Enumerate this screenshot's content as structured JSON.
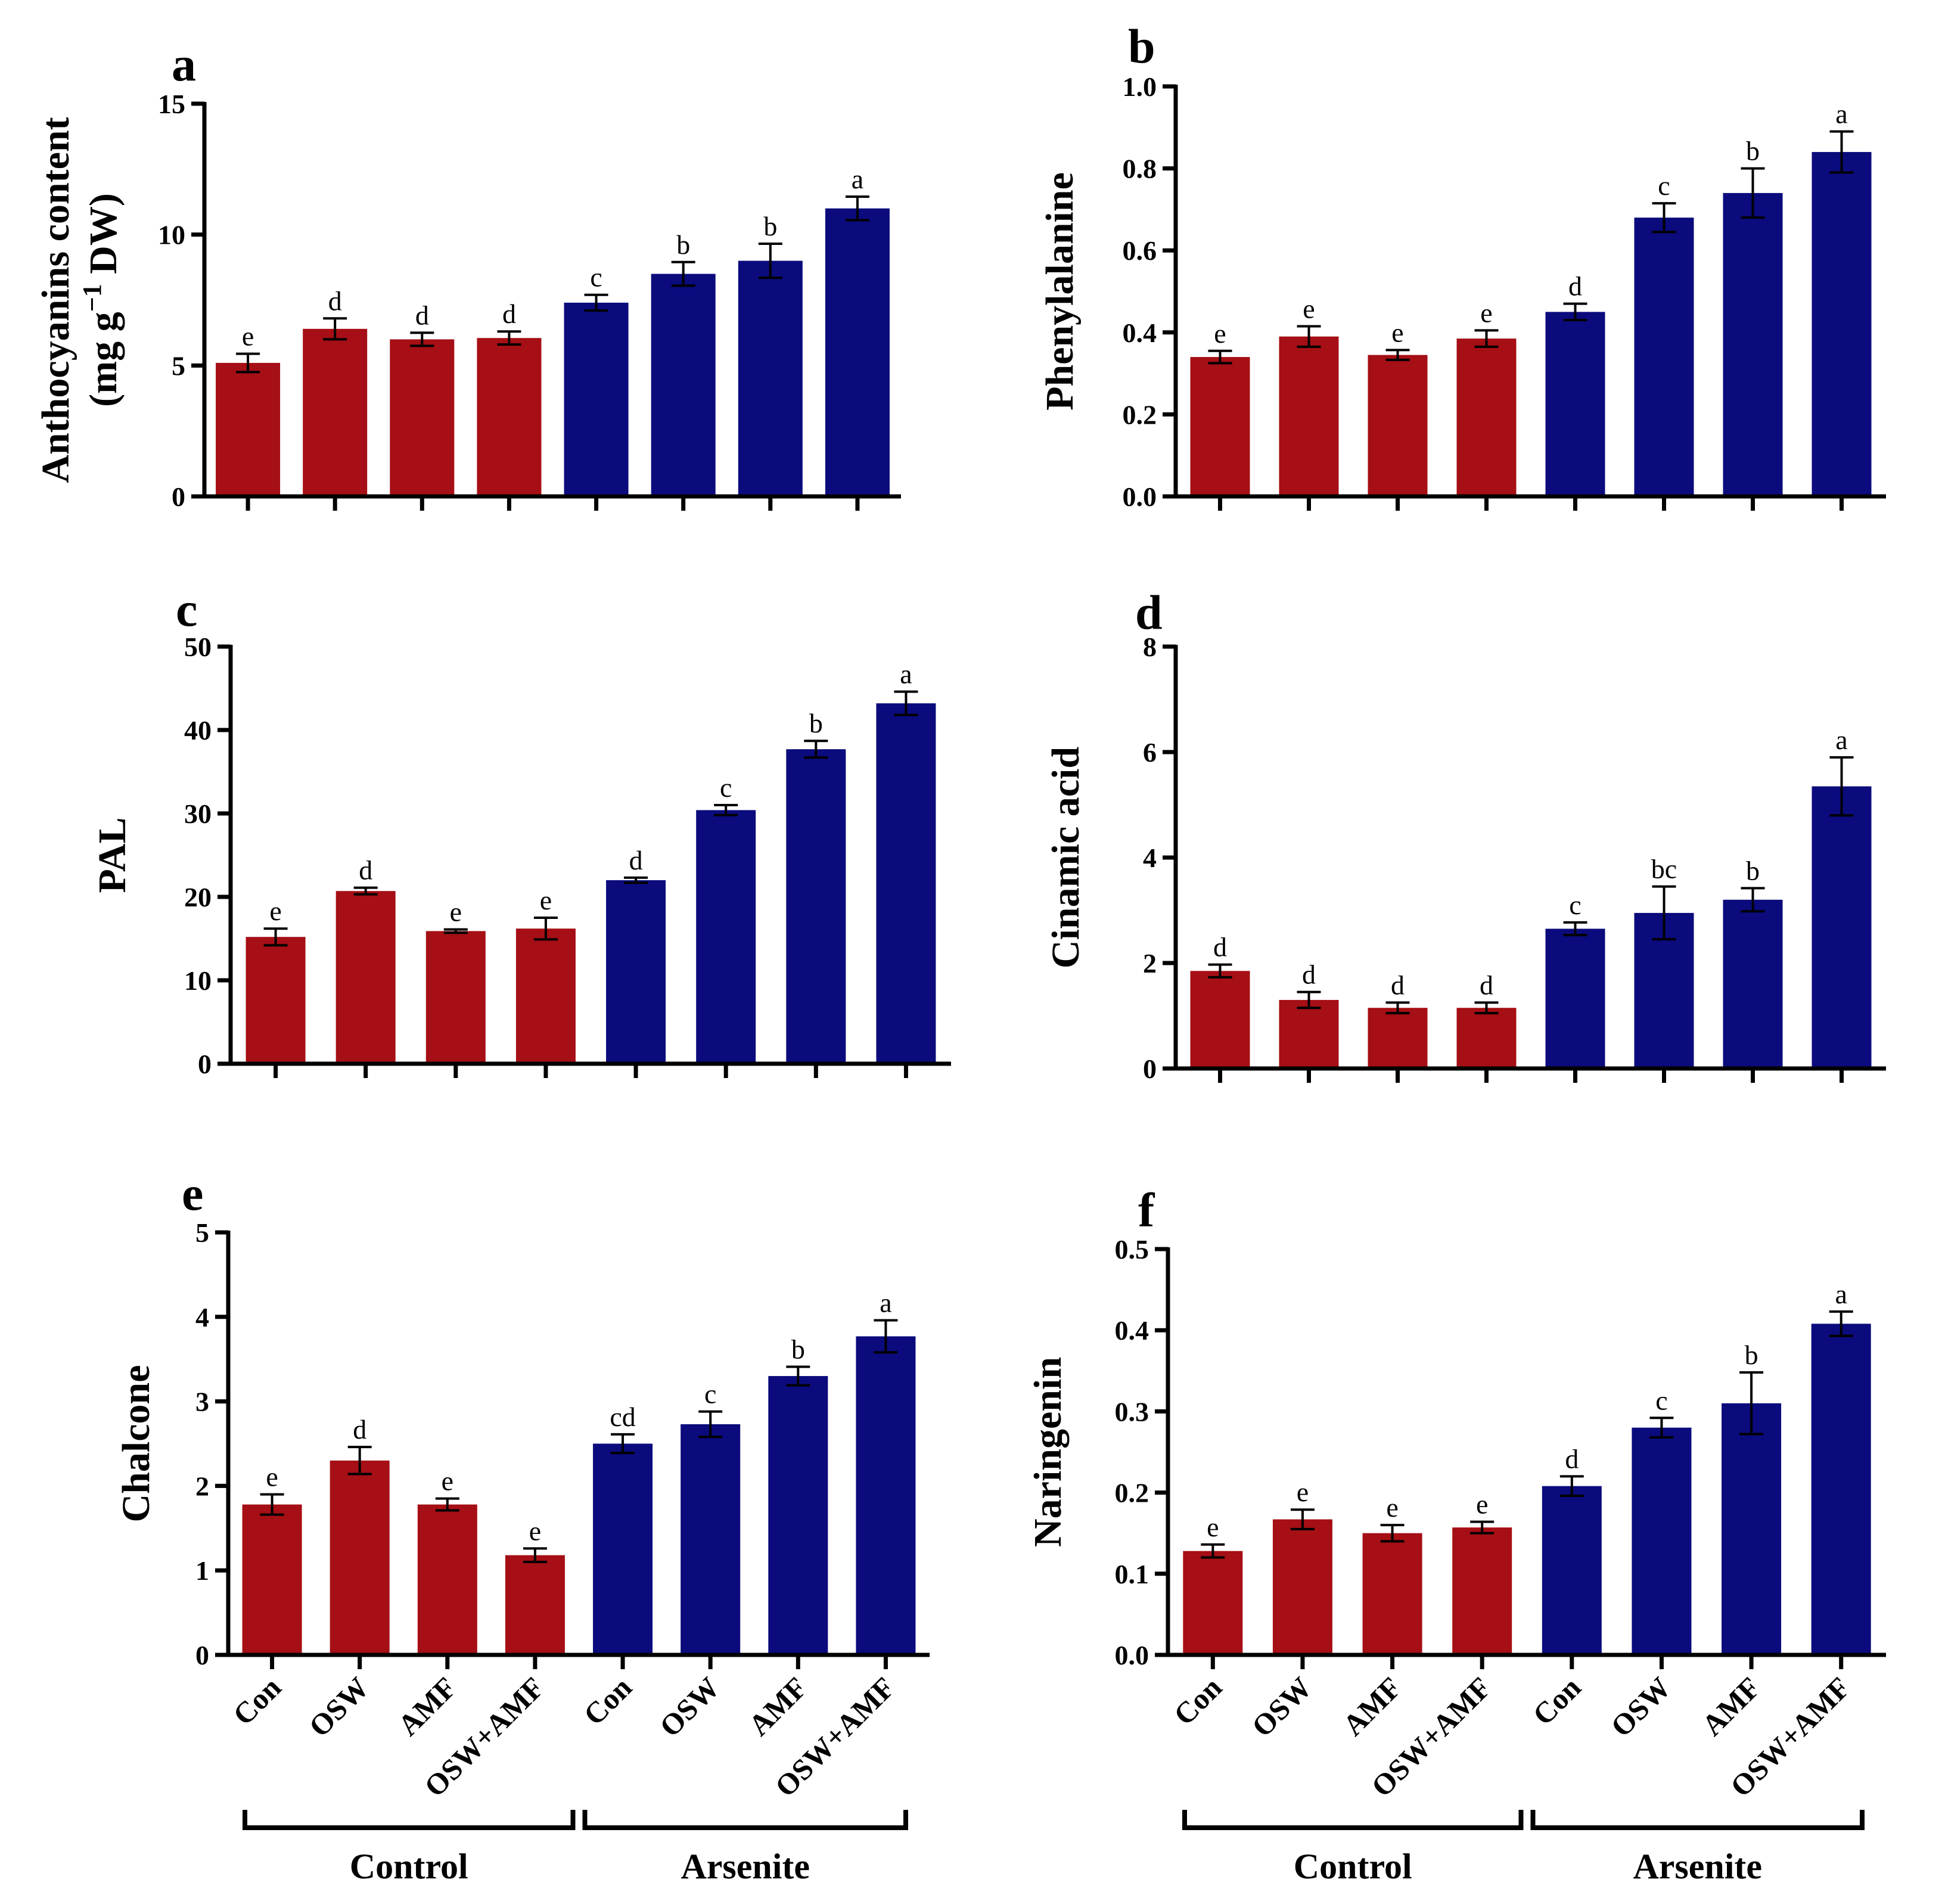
{
  "colors": {
    "control": "#a50f15",
    "arsenite": "#0b0b7d",
    "axis": "#000000"
  },
  "groups": [
    "Control",
    "Arsenite"
  ],
  "treatments": [
    "Con",
    "OSW",
    "AMF",
    "OSW+AMF",
    "Con",
    "OSW",
    "AMF",
    "OSW+AMF"
  ],
  "chart_data": [
    {
      "type": "bar",
      "panel": "a",
      "ylabel": "Anthocyanins content",
      "ylabel_unit": [
        "(mg g",
        "−1",
        " DW)"
      ],
      "ylim": [
        0,
        15
      ],
      "yticks": [
        "0",
        "5",
        "10",
        "15"
      ],
      "yticks_values": [
        0,
        5,
        10,
        15
      ],
      "categories": [
        "Con",
        "OSW",
        "AMF",
        "OSW+AMF",
        "Con",
        "OSW",
        "AMF",
        "OSW+AMF"
      ],
      "values": [
        5.1,
        6.4,
        6.0,
        6.05,
        7.4,
        8.5,
        9.0,
        11.0
      ],
      "errors": [
        0.35,
        0.4,
        0.25,
        0.25,
        0.3,
        0.45,
        0.65,
        0.45
      ],
      "letters": [
        "e",
        "d",
        "d",
        "d",
        "c",
        "b",
        "b",
        "a"
      ]
    },
    {
      "type": "bar",
      "panel": "b",
      "ylabel": "Phenylalanine",
      "ylim": [
        0,
        1.0
      ],
      "yticks": [
        "0.0",
        "0.2",
        "0.4",
        "0.6",
        "0.8",
        "1.0"
      ],
      "yticks_values": [
        0,
        0.2,
        0.4,
        0.6,
        0.8,
        1.0
      ],
      "categories": [
        "Con",
        "OSW",
        "AMF",
        "OSW+AMF",
        "Con",
        "OSW",
        "AMF",
        "OSW+AMF"
      ],
      "values": [
        0.34,
        0.39,
        0.345,
        0.385,
        0.45,
        0.68,
        0.74,
        0.84
      ],
      "errors": [
        0.015,
        0.025,
        0.012,
        0.02,
        0.02,
        0.035,
        0.06,
        0.05
      ],
      "letters": [
        "e",
        "e",
        "e",
        "e",
        "d",
        "c",
        "b",
        "a"
      ]
    },
    {
      "type": "bar",
      "panel": "c",
      "ylabel": "PAL",
      "ylim": [
        0,
        50
      ],
      "yticks": [
        "0",
        "10",
        "20",
        "30",
        "40",
        "50"
      ],
      "yticks_values": [
        0,
        10,
        20,
        30,
        40,
        50
      ],
      "categories": [
        "Con",
        "OSW",
        "AMF",
        "OSW+AMF",
        "Con",
        "OSW",
        "AMF",
        "OSW+AMF"
      ],
      "values": [
        15.2,
        20.7,
        15.9,
        16.2,
        22.0,
        30.4,
        37.7,
        43.2
      ],
      "errors": [
        1.0,
        0.4,
        0.2,
        1.3,
        0.3,
        0.6,
        1.0,
        1.4
      ],
      "letters": [
        "e",
        "d",
        "e",
        "e",
        "d",
        "c",
        "b",
        "a"
      ]
    },
    {
      "type": "bar",
      "panel": "d",
      "ylabel": "Cinamic acid",
      "ylim": [
        0,
        8
      ],
      "yticks": [
        "0",
        "2",
        "4",
        "6",
        "8"
      ],
      "yticks_values": [
        0,
        2,
        4,
        6,
        8
      ],
      "categories": [
        "Con",
        "OSW",
        "AMF",
        "OSW+AMF",
        "Con",
        "OSW",
        "AMF",
        "OSW+AMF"
      ],
      "values": [
        1.85,
        1.3,
        1.15,
        1.15,
        2.65,
        2.95,
        3.2,
        5.35
      ],
      "errors": [
        0.12,
        0.15,
        0.1,
        0.1,
        0.12,
        0.5,
        0.22,
        0.55
      ],
      "letters": [
        "d",
        "d",
        "d",
        "d",
        "c",
        "bc",
        "b",
        "a"
      ]
    },
    {
      "type": "bar",
      "panel": "e",
      "ylabel": "Chalcone",
      "ylim": [
        0,
        5
      ],
      "yticks": [
        "0",
        "1",
        "2",
        "3",
        "4",
        "5"
      ],
      "yticks_values": [
        0,
        1,
        2,
        3,
        4,
        5
      ],
      "categories": [
        "Con",
        "OSW",
        "AMF",
        "OSW+AMF",
        "Con",
        "OSW",
        "AMF",
        "OSW+AMF"
      ],
      "values": [
        1.78,
        2.3,
        1.78,
        1.18,
        2.5,
        2.73,
        3.3,
        3.77
      ],
      "errors": [
        0.12,
        0.16,
        0.07,
        0.08,
        0.11,
        0.15,
        0.11,
        0.19
      ],
      "letters": [
        "e",
        "d",
        "e",
        "e",
        "cd",
        "c",
        "b",
        "a"
      ]
    },
    {
      "type": "bar",
      "panel": "f",
      "ylabel": "Naringenin",
      "ylim": [
        0,
        0.5
      ],
      "yticks": [
        "0.0",
        "0.1",
        "0.2",
        "0.3",
        "0.4",
        "0.5"
      ],
      "yticks_values": [
        0,
        0.1,
        0.2,
        0.3,
        0.4,
        0.5
      ],
      "categories": [
        "Con",
        "OSW",
        "AMF",
        "OSW+AMF",
        "Con",
        "OSW",
        "AMF",
        "OSW+AMF"
      ],
      "values": [
        0.128,
        0.167,
        0.15,
        0.157,
        0.208,
        0.28,
        0.31,
        0.408
      ],
      "errors": [
        0.008,
        0.012,
        0.01,
        0.007,
        0.012,
        0.012,
        0.038,
        0.015
      ],
      "letters": [
        "e",
        "e",
        "e",
        "e",
        "d",
        "c",
        "b",
        "a"
      ]
    }
  ]
}
